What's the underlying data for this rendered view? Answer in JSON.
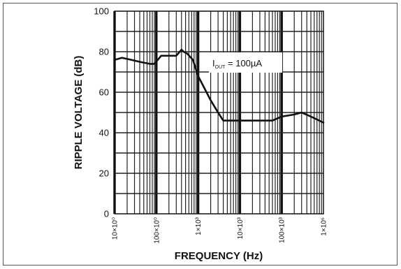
{
  "chart_data": {
    "type": "line",
    "xlabel": "FREQUENCY (Hz)",
    "ylabel": "RIPPLE VOLTAGE (dB)",
    "x_scale": "log",
    "xlim": [
      10,
      1000000
    ],
    "ylim": [
      0,
      100
    ],
    "grid": true,
    "x_ticks": [
      {
        "value": 10,
        "label": "10×10⁰"
      },
      {
        "value": 100,
        "label": "100×10⁰"
      },
      {
        "value": 1000,
        "label": "1×10³"
      },
      {
        "value": 10000,
        "label": "10×10³"
      },
      {
        "value": 100000,
        "label": "100×10³"
      },
      {
        "value": 1000000,
        "label": "1×10⁶"
      }
    ],
    "y_ticks": [
      {
        "value": 0,
        "label": "0"
      },
      {
        "value": 20,
        "label": "20"
      },
      {
        "value": 40,
        "label": "40"
      },
      {
        "value": 60,
        "label": "60"
      },
      {
        "value": 80,
        "label": "80"
      },
      {
        "value": 100,
        "label": "100"
      }
    ],
    "annotation": {
      "main": "I",
      "subscript": "OUT",
      "rest": " = 100µA"
    },
    "series": [
      {
        "x": [
          10,
          15,
          25,
          40,
          70,
          90,
          130,
          200,
          300,
          400,
          450,
          550,
          750,
          1000,
          2000,
          3000,
          4000,
          10000,
          20000,
          40000,
          60000,
          100000,
          200000,
          300000,
          500000,
          1000000
        ],
        "y": [
          76,
          77,
          76,
          75,
          74,
          74,
          78,
          78,
          78,
          81,
          80,
          79,
          76,
          68,
          56,
          50,
          46,
          46,
          46,
          46,
          46,
          48,
          49,
          50,
          48,
          45
        ]
      }
    ]
  }
}
